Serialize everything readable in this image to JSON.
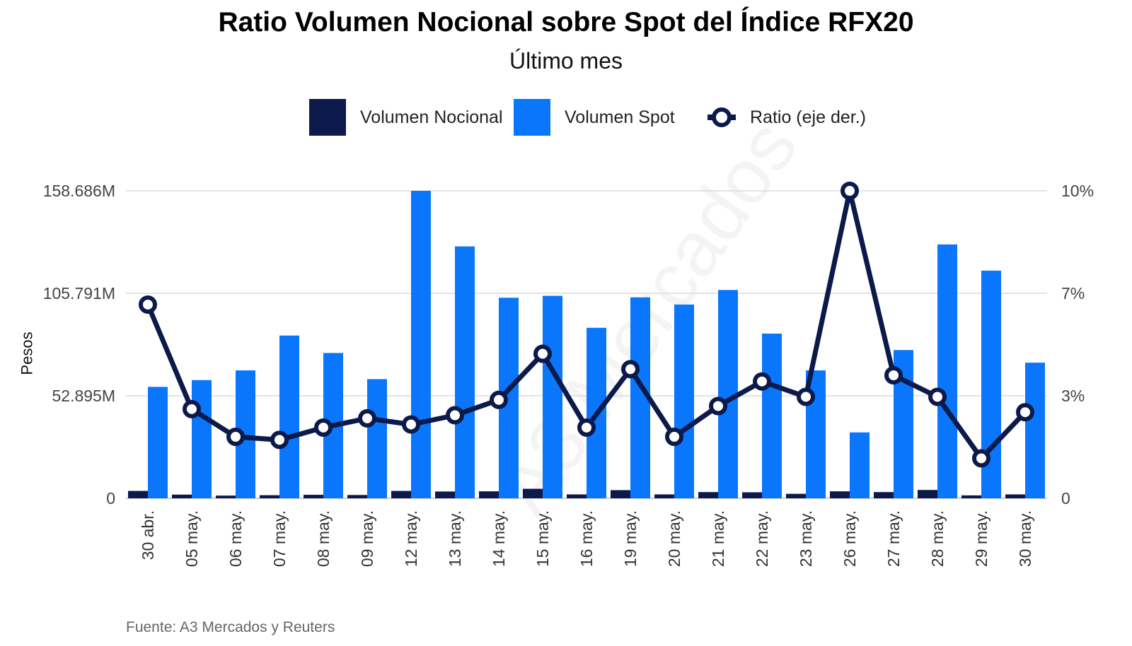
{
  "chart_data": {
    "type": "bar",
    "title": "Ratio Volumen Nocional sobre Spot del Índice RFX20",
    "subtitle": "Último mes",
    "ylabel": "Pesos",
    "source": "Fuente: A3 Mercados y Reuters",
    "watermark": "A3 Mercados",
    "categories": [
      "30 abr.",
      "05 may.",
      "06 may.",
      "07 may.",
      "08 may.",
      "09 may.",
      "12 may.",
      "13 may.",
      "14 may.",
      "15 may.",
      "16 may.",
      "19 may.",
      "20 may.",
      "21 may.",
      "22 may.",
      "23 may.",
      "26 may.",
      "27 may.",
      "28 may.",
      "29 may.",
      "30 may."
    ],
    "y_left": {
      "lim": [
        0,
        158.686
      ],
      "ticks": [
        0,
        52.895,
        105.791,
        158.686
      ],
      "tick_labels": [
        "0",
        "52.895M",
        "105.791M",
        "158.686M"
      ]
    },
    "y_right": {
      "lim": [
        0,
        10
      ],
      "ticks": [
        0,
        3.333,
        6.667,
        10
      ],
      "tick_labels": [
        "0",
        "3%",
        "7%",
        "10%"
      ]
    },
    "grid": true,
    "legend_position": "top",
    "series": [
      {
        "name": "Volumen Nocional",
        "type": "bar",
        "axis": "left",
        "color": "#0b1a4a",
        "values": [
          3.8,
          1.9,
          1.4,
          1.6,
          1.8,
          1.7,
          3.8,
          3.5,
          3.6,
          4.9,
          2.0,
          4.2,
          2.0,
          3.2,
          3.1,
          2.3,
          3.6,
          3.2,
          4.3,
          1.5,
          2.0
        ]
      },
      {
        "name": "Volumen Spot",
        "type": "bar",
        "axis": "left",
        "color": "#0a76fb",
        "values": [
          57.5,
          61.0,
          66.0,
          84.0,
          75.0,
          61.5,
          158.686,
          130.0,
          103.5,
          104.5,
          88.0,
          103.7,
          100.0,
          107.5,
          85.0,
          66.0,
          34.0,
          76.5,
          131.0,
          117.5,
          70.0
        ]
      },
      {
        "name": "Ratio (eje der.)",
        "type": "line",
        "axis": "right",
        "color": "#0b1a4a",
        "values": [
          6.3,
          2.9,
          2.0,
          1.9,
          2.3,
          2.6,
          2.4,
          2.7,
          3.2,
          4.7,
          2.3,
          4.2,
          2.0,
          3.0,
          3.8,
          3.3,
          10.0,
          4.0,
          3.3,
          1.3,
          2.8
        ]
      }
    ]
  }
}
